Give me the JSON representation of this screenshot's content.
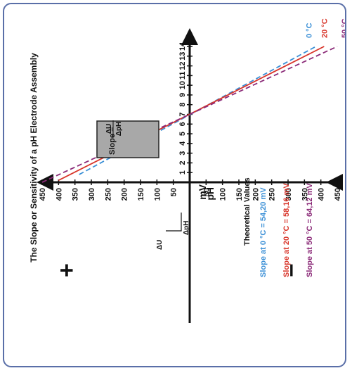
{
  "chart_data": {
    "type": "line",
    "title": "The Slope or Sensitivity of a pH Electrode Assembly",
    "xlabel": "pH",
    "ylabel": "mV",
    "x_ticks": [
      "1",
      "2",
      "3",
      "4",
      "5",
      "6",
      "7",
      "8",
      "9",
      "10",
      "11",
      "12",
      "13",
      "14"
    ],
    "y_ticks_positive": [
      "450",
      "400",
      "350",
      "300",
      "250",
      "200",
      "150",
      "100",
      "50"
    ],
    "y_ticks_negative": [
      "50",
      "100",
      "150",
      "200",
      "250",
      "300",
      "350",
      "400",
      "450"
    ],
    "xlim": [
      0,
      14.5
    ],
    "ylim": [
      -450,
      450
    ],
    "grid": false,
    "legend_position": "top-right",
    "plus_sign": "+",
    "minus_sign": "–",
    "series": [
      {
        "name": "0 °C",
        "color": "#3a8fd6",
        "style": "dashed",
        "x": [
          0.8,
          14.0
        ],
        "y": [
          337,
          -385
        ]
      },
      {
        "name": "20 °C",
        "color": "#d8352a",
        "style": "solid",
        "x": [
          0.2,
          14.0
        ],
        "y": [
          400,
          -410
        ]
      },
      {
        "name": "50 °C",
        "color": "#8b2a78",
        "style": "dashed",
        "x": [
          0.0,
          14.0
        ],
        "y": [
          450,
          -450
        ]
      }
    ],
    "slope_formula": {
      "left": "Slope =",
      "numerator": "ΔU",
      "denominator": "ΔpH"
    },
    "triangle": {
      "du_label": "ΔU",
      "dph_label": "ΔpH"
    },
    "theoretical": {
      "title": "Theoretical Values",
      "lines": [
        {
          "text": "Slope at   0 °C = 54,20 mV",
          "color": "#3a8fd6"
        },
        {
          "text": "Slope at 20 °C = 58,16 mV",
          "color": "#d8352a"
        },
        {
          "text": "Slope at 50 °C = 64,12 mV",
          "color": "#8b2a78"
        }
      ]
    }
  }
}
